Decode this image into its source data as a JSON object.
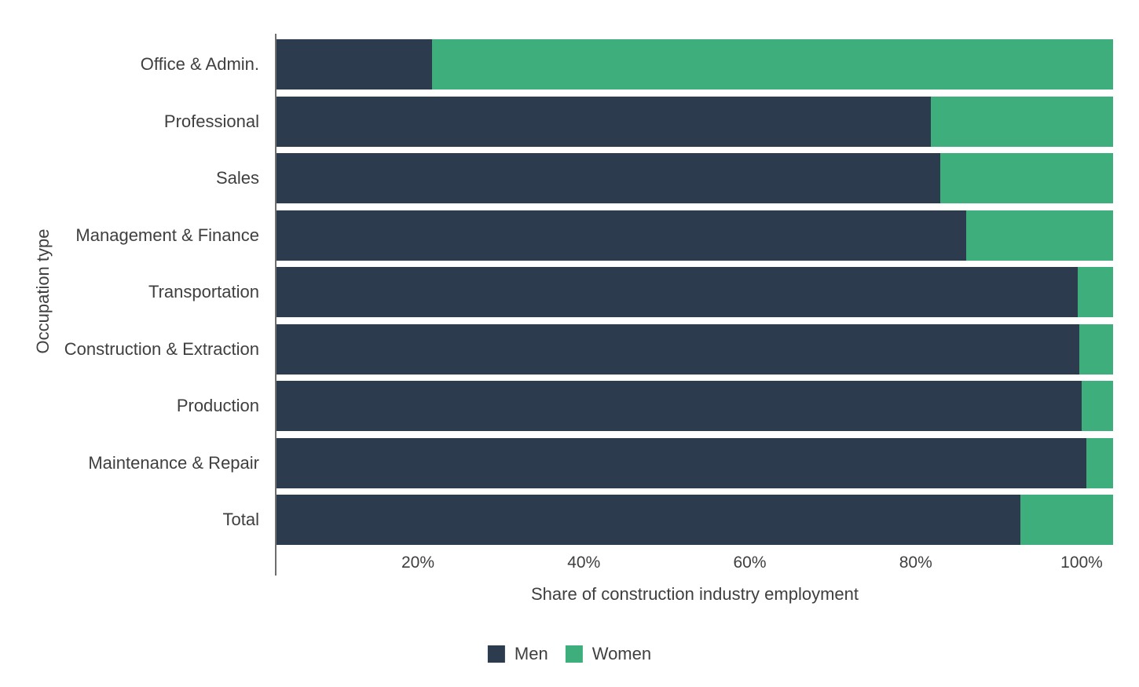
{
  "chart_data": {
    "type": "bar",
    "orientation": "horizontal",
    "stacked": true,
    "barnorm": "percent",
    "title": "",
    "xlabel": "Share of construction industry employment",
    "ylabel": "Occupation type",
    "grid": false,
    "categories": [
      "Office & Admin.",
      "Professional",
      "Sales",
      "Management & Finance",
      "Transportation",
      "Construction & Extraction",
      "Production",
      "Maintenance & Repair",
      "Total"
    ],
    "series": [
      {
        "name": "Men",
        "color": "#2c3c4e",
        "values": [
          18.6,
          78.2,
          79.3,
          82.4,
          95.8,
          96.0,
          96.2,
          96.8,
          88.9
        ]
      },
      {
        "name": "Women",
        "color": "#3dae7c",
        "values": [
          81.4,
          21.8,
          20.7,
          17.6,
          4.2,
          4.0,
          3.8,
          3.2,
          11.1
        ]
      }
    ],
    "x_axis": {
      "range": [
        0,
        100
      ],
      "unit": "%",
      "ticks": [
        {
          "value": 20,
          "label": "20%"
        },
        {
          "value": 40,
          "label": "40%"
        },
        {
          "value": 60,
          "label": "60%"
        },
        {
          "value": 80,
          "label": "80%"
        },
        {
          "value": 100,
          "label": "100%"
        }
      ]
    },
    "legend": {
      "position": "bottom-center",
      "entries": [
        "Men",
        "Women"
      ]
    }
  },
  "colors": {
    "men": "#2c3c4e",
    "women": "#3dae7c",
    "axis_line": "#6e6e6e",
    "text": "#3f3f3f",
    "background": "#ffffff"
  }
}
